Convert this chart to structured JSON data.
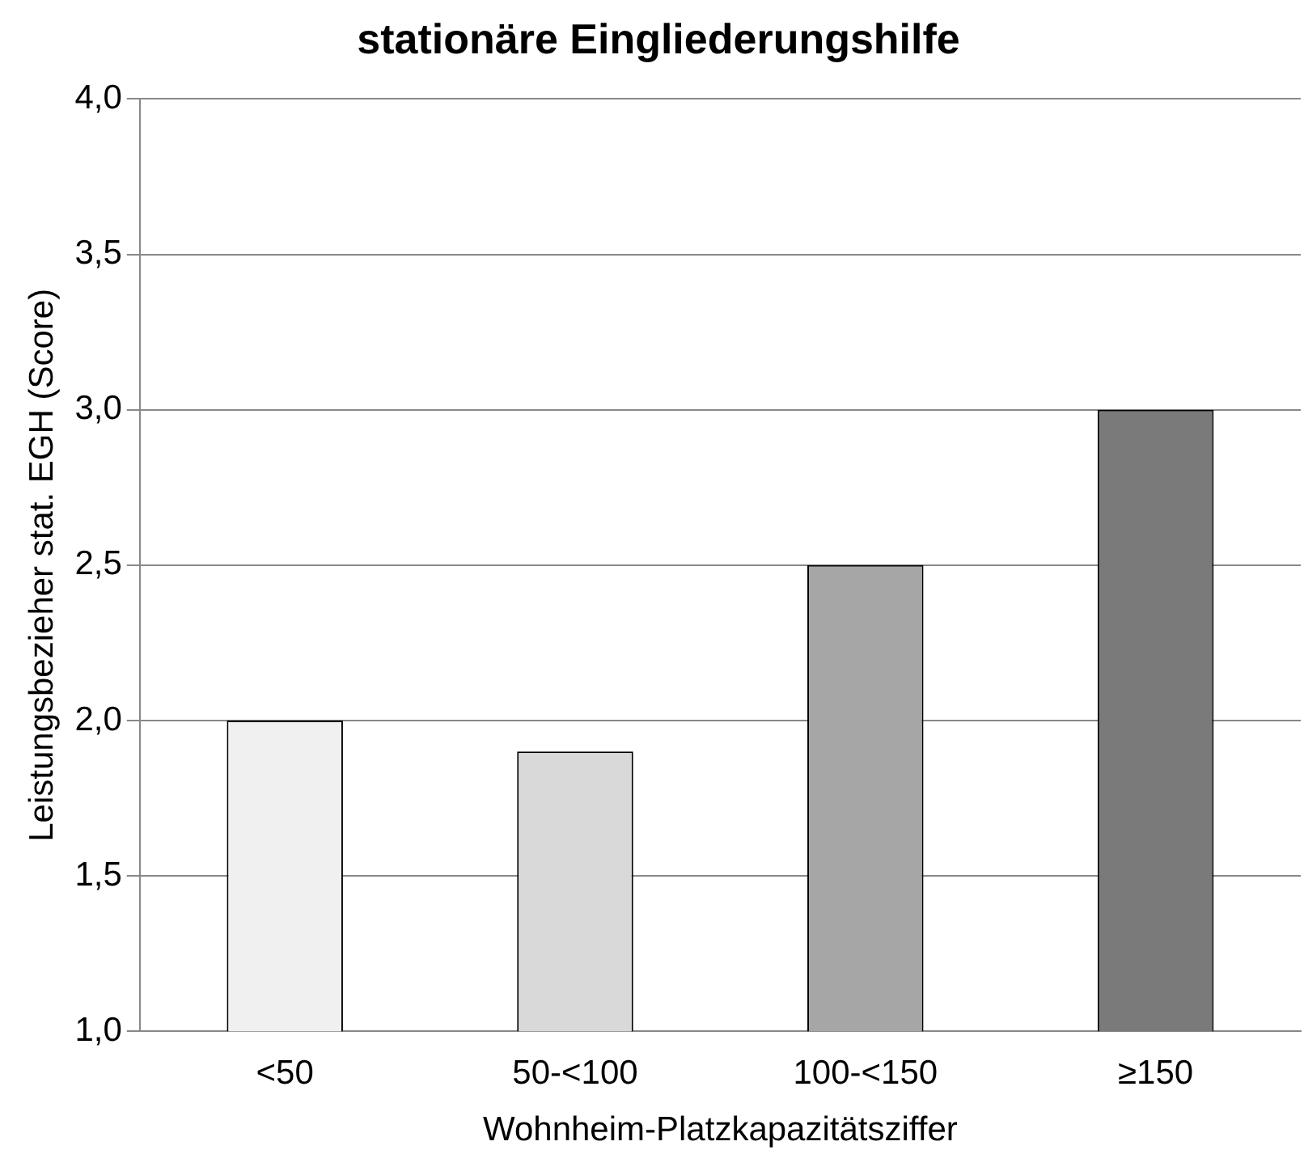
{
  "chart_data": {
    "type": "bar",
    "title": "stationäre Eingliederungshilfe",
    "xlabel": "Wohnheim-Platzkapazitätsziffer",
    "ylabel": "Leistungsbezieher stat. EGH (Score)",
    "categories": [
      "<50",
      "50-<100",
      "100-<150",
      "≥150"
    ],
    "values": [
      2.0,
      1.9,
      2.5,
      3.0
    ],
    "colors": [
      "#f0f0f0",
      "#d9d9d9",
      "#a6a6a6",
      "#7a7a7a"
    ],
    "ylim": [
      1,
      4
    ],
    "yticks": [
      {
        "value": 1,
        "label": "1,0"
      },
      {
        "value": 1.5,
        "label": "1,5"
      },
      {
        "value": 2,
        "label": "2,0"
      },
      {
        "value": 2.5,
        "label": "2,5"
      },
      {
        "value": 3,
        "label": "3,0"
      },
      {
        "value": 3.5,
        "label": "3,5"
      },
      {
        "value": 4,
        "label": "4,0"
      }
    ],
    "grid": "y",
    "legend": false
  }
}
